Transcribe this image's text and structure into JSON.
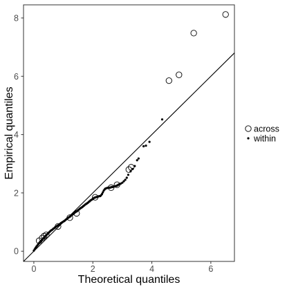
{
  "chart_data": {
    "type": "scatter",
    "xlabel": "Theoretical quantiles",
    "ylabel": "Empirical quantiles",
    "xlim": [
      -0.35,
      6.8
    ],
    "ylim": [
      -0.35,
      8.45
    ],
    "x_ticks": [
      0,
      2,
      4,
      6
    ],
    "y_ticks": [
      0,
      2,
      4,
      6,
      8
    ],
    "grid": false,
    "legend_position": "right",
    "reference_line": {
      "intercept": 0,
      "slope": 1
    },
    "series": [
      {
        "name": "across",
        "marker": "open-circle",
        "x": [
          0.18,
          0.28,
          0.35,
          0.42,
          0.82,
          1.22,
          1.45,
          2.08,
          2.62,
          2.82,
          3.22,
          3.3,
          4.58,
          4.92,
          5.42,
          6.5
        ],
        "y": [
          0.36,
          0.45,
          0.52,
          0.56,
          0.85,
          1.15,
          1.3,
          1.85,
          2.18,
          2.28,
          2.8,
          2.88,
          5.85,
          6.05,
          7.48,
          8.12
        ]
      },
      {
        "name": "within",
        "marker": "dot",
        "x": [
          0.0,
          0.03,
          0.06,
          0.09,
          0.12,
          0.15,
          0.18,
          0.21,
          0.24,
          0.27,
          0.3,
          0.33,
          0.36,
          0.39,
          0.42,
          0.45,
          0.48,
          0.51,
          0.54,
          0.57,
          0.6,
          0.63,
          0.66,
          0.69,
          0.72,
          0.75,
          0.78,
          0.81,
          0.84,
          0.87,
          0.9,
          0.93,
          0.96,
          0.99,
          1.02,
          1.05,
          1.08,
          1.11,
          1.14,
          1.17,
          1.2,
          1.23,
          1.26,
          1.29,
          1.32,
          1.35,
          1.38,
          1.41,
          1.44,
          1.47,
          1.5,
          1.53,
          1.56,
          1.59,
          1.62,
          1.65,
          1.68,
          1.71,
          1.74,
          1.77,
          1.8,
          1.83,
          1.86,
          1.89,
          1.92,
          1.95,
          1.98,
          2.01,
          2.04,
          2.07,
          2.1,
          2.13,
          2.16,
          2.19,
          2.22,
          2.25,
          2.28,
          2.31,
          2.34,
          2.37,
          2.4,
          2.43,
          2.46,
          2.49,
          2.52,
          2.55,
          2.58,
          2.61,
          2.64,
          2.67,
          2.7,
          2.73,
          2.76,
          2.79,
          2.82,
          2.85,
          2.88,
          2.91,
          2.95,
          3.0,
          3.05,
          3.1,
          3.15,
          3.2,
          3.28,
          3.35,
          3.42,
          3.5,
          3.55,
          3.72,
          3.8,
          3.92,
          4.35
        ],
        "y": [
          0.02,
          0.07,
          0.12,
          0.16,
          0.2,
          0.24,
          0.28,
          0.32,
          0.35,
          0.38,
          0.42,
          0.45,
          0.49,
          0.52,
          0.55,
          0.58,
          0.61,
          0.64,
          0.67,
          0.7,
          0.72,
          0.74,
          0.77,
          0.79,
          0.82,
          0.84,
          0.86,
          0.88,
          0.9,
          0.92,
          0.95,
          0.97,
          0.99,
          1.01,
          1.03,
          1.05,
          1.08,
          1.1,
          1.13,
          1.15,
          1.17,
          1.19,
          1.22,
          1.24,
          1.27,
          1.29,
          1.32,
          1.34,
          1.36,
          1.38,
          1.41,
          1.43,
          1.46,
          1.48,
          1.5,
          1.52,
          1.55,
          1.57,
          1.6,
          1.62,
          1.64,
          1.66,
          1.69,
          1.71,
          1.74,
          1.76,
          1.78,
          1.8,
          1.83,
          1.84,
          1.85,
          1.86,
          1.87,
          1.88,
          1.89,
          1.89,
          1.92,
          1.96,
          2.02,
          2.08,
          2.12,
          2.15,
          2.16,
          2.17,
          2.18,
          2.18,
          2.18,
          2.19,
          2.2,
          2.2,
          2.22,
          2.22,
          2.23,
          2.24,
          2.25,
          2.27,
          2.29,
          2.3,
          2.32,
          2.35,
          2.4,
          2.45,
          2.52,
          2.62,
          2.74,
          2.82,
          2.92,
          3.12,
          3.18,
          3.6,
          3.62,
          3.75,
          4.52
        ]
      }
    ]
  }
}
